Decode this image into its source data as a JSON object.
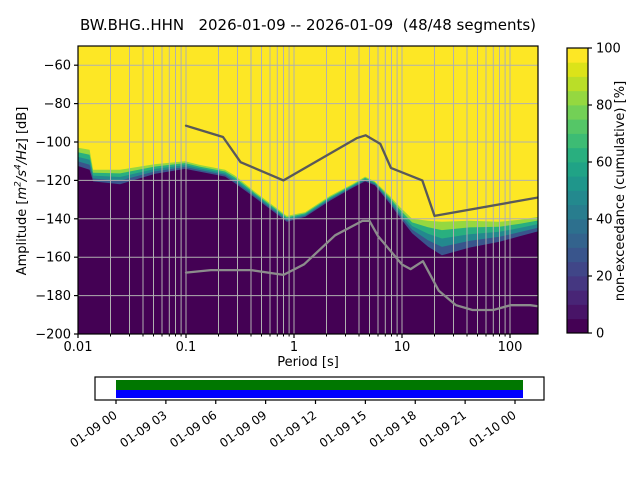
{
  "figure": {
    "title": "BW.BHG..HHN   2026-01-09 -- 2026-01-09  (48/48 segments)"
  },
  "chart_data": {
    "type": "heatmap",
    "title": "BW.BHG..HHN   2026-01-09 -- 2026-01-09  (48/48 segments)",
    "xlabel": "Period [s]",
    "ylabel_plain": "Amplitude [m2/s4/Hz] [dB]",
    "ylabel_segments": [
      {
        "t": "Amplitude [",
        "s": "n"
      },
      {
        "t": "m",
        "s": "i"
      },
      {
        "t": "2",
        "s": "sup"
      },
      {
        "t": "/s",
        "s": "i"
      },
      {
        "t": "4",
        "s": "sup"
      },
      {
        "t": "/Hz",
        "s": "i"
      },
      {
        "t": "] [dB]",
        "s": "n"
      }
    ],
    "x_scale": "log",
    "xlim": [
      0.01,
      182
    ],
    "ylim_db": [
      -200,
      -50
    ],
    "x_tick_values": [
      0.01,
      0.1,
      1,
      10,
      100
    ],
    "x_tick_labels": [
      "0.01",
      "0.1",
      "1",
      "10",
      "100"
    ],
    "y_tick_values": [
      -60,
      -80,
      -100,
      -120,
      -140,
      -160,
      -180,
      -200
    ],
    "y_tick_labels": [
      "−60",
      "−80",
      "−100",
      "−120",
      "−140",
      "−160",
      "−180",
      "−200"
    ],
    "grid": true,
    "grid_color": "#b0b0b0",
    "colormap_top": "#fde725",
    "colormap_bottom": "#440154",
    "band_stops": [
      {
        "t": 0.0,
        "color": "#95d840"
      },
      {
        "t": 0.25,
        "color": "#29af7f"
      },
      {
        "t": 0.5,
        "color": "#23898e"
      },
      {
        "t": 0.75,
        "color": "#39558c"
      },
      {
        "t": 1.0,
        "color": "#440154"
      }
    ],
    "envelope_upper_db": [
      [
        0.01,
        -103
      ],
      [
        0.0128,
        -104
      ],
      [
        0.0138,
        -114.5
      ],
      [
        0.0245,
        -114.5
      ],
      [
        0.052,
        -111.5
      ],
      [
        0.098,
        -110
      ],
      [
        0.135,
        -112
      ],
      [
        0.23,
        -114.5
      ],
      [
        0.284,
        -117.5
      ],
      [
        0.435,
        -126
      ],
      [
        0.86,
        -138.5
      ],
      [
        1.27,
        -136.5
      ],
      [
        2.16,
        -128
      ],
      [
        3.45,
        -122
      ],
      [
        4.55,
        -118
      ],
      [
        5.6,
        -120.5
      ],
      [
        7.7,
        -128
      ],
      [
        9.6,
        -134
      ],
      [
        12.4,
        -140
      ],
      [
        17.4,
        -141
      ],
      [
        23.4,
        -141.5
      ],
      [
        42,
        -141
      ],
      [
        80,
        -141.5
      ],
      [
        124,
        -140.5
      ],
      [
        182,
        -139
      ]
    ],
    "envelope_lower_db": [
      [
        0.01,
        -112.5
      ],
      [
        0.0128,
        -114.5
      ],
      [
        0.0138,
        -120.5
      ],
      [
        0.0245,
        -122
      ],
      [
        0.052,
        -116.5
      ],
      [
        0.098,
        -114
      ],
      [
        0.135,
        -115.5
      ],
      [
        0.23,
        -118
      ],
      [
        0.284,
        -121.5
      ],
      [
        0.435,
        -129
      ],
      [
        0.86,
        -141.5
      ],
      [
        1.27,
        -139
      ],
      [
        2.16,
        -130.5
      ],
      [
        3.45,
        -124
      ],
      [
        4.55,
        -120.5
      ],
      [
        5.6,
        -122.5
      ],
      [
        7.7,
        -132
      ],
      [
        9.6,
        -139.5
      ],
      [
        12.4,
        -147.5
      ],
      [
        17.4,
        -154.5
      ],
      [
        23.4,
        -159
      ],
      [
        42,
        -155
      ],
      [
        80,
        -152
      ],
      [
        124,
        -149
      ],
      [
        182,
        -146.5
      ]
    ],
    "noise_models": {
      "nhnm": {
        "color": "#595959",
        "width": 2.3,
        "points_db": [
          [
            0.1,
            -91.5
          ],
          [
            0.22,
            -97.4
          ],
          [
            0.32,
            -110.5
          ],
          [
            0.8,
            -120.0
          ],
          [
            3.8,
            -98.0
          ],
          [
            4.6,
            -96.5
          ],
          [
            6.3,
            -101.0
          ],
          [
            7.9,
            -113.5
          ],
          [
            15.4,
            -120.0
          ],
          [
            20.0,
            -138.5
          ],
          [
            354.8,
            -126.0
          ]
        ]
      },
      "nlnm": {
        "color": "#8c8c8c",
        "width": 2.3,
        "points_db": [
          [
            0.1,
            -168.0
          ],
          [
            0.17,
            -166.7
          ],
          [
            0.4,
            -166.7
          ],
          [
            0.8,
            -169.2
          ],
          [
            1.24,
            -163.7
          ],
          [
            2.4,
            -148.6
          ],
          [
            4.3,
            -141.1
          ],
          [
            5.0,
            -141.1
          ],
          [
            6.0,
            -149.0
          ],
          [
            10.0,
            -163.8
          ],
          [
            12.0,
            -166.2
          ],
          [
            15.6,
            -162.1
          ],
          [
            21.9,
            -177.5
          ],
          [
            31.6,
            -185.0
          ],
          [
            45.0,
            -187.5
          ],
          [
            70.0,
            -187.5
          ],
          [
            101.0,
            -185.0
          ],
          [
            154.0,
            -185.0
          ],
          [
            328.0,
            -187.5
          ]
        ]
      }
    },
    "colorbar": {
      "label": "non-exceedance (cumulative) [%]",
      "tick_values": [
        0,
        20,
        40,
        60,
        80,
        100
      ],
      "tick_labels": [
        "0",
        "20",
        "40",
        "60",
        "80",
        "100"
      ],
      "n_segments": 20,
      "segment_colors_bottom_to_top": [
        "#440154",
        "#481467",
        "#482576",
        "#453781",
        "#404688",
        "#39558c",
        "#33638d",
        "#2d708e",
        "#287d8e",
        "#23898e",
        "#1f968b",
        "#20a386",
        "#29af7f",
        "#3dbc74",
        "#55c667",
        "#73d056",
        "#95d840",
        "#bade28",
        "#dce319",
        "#fde725"
      ]
    },
    "timeline": {
      "tick_labels": [
        "01-09 00",
        "01-09 03",
        "01-09 06",
        "01-09 09",
        "01-09 12",
        "01-09 15",
        "01-09 18",
        "01-09 21",
        "01-10 00"
      ],
      "coverage_top_color": "#007700",
      "coverage_bottom_color": "#0000ff",
      "box_background": "#ffffff"
    }
  }
}
